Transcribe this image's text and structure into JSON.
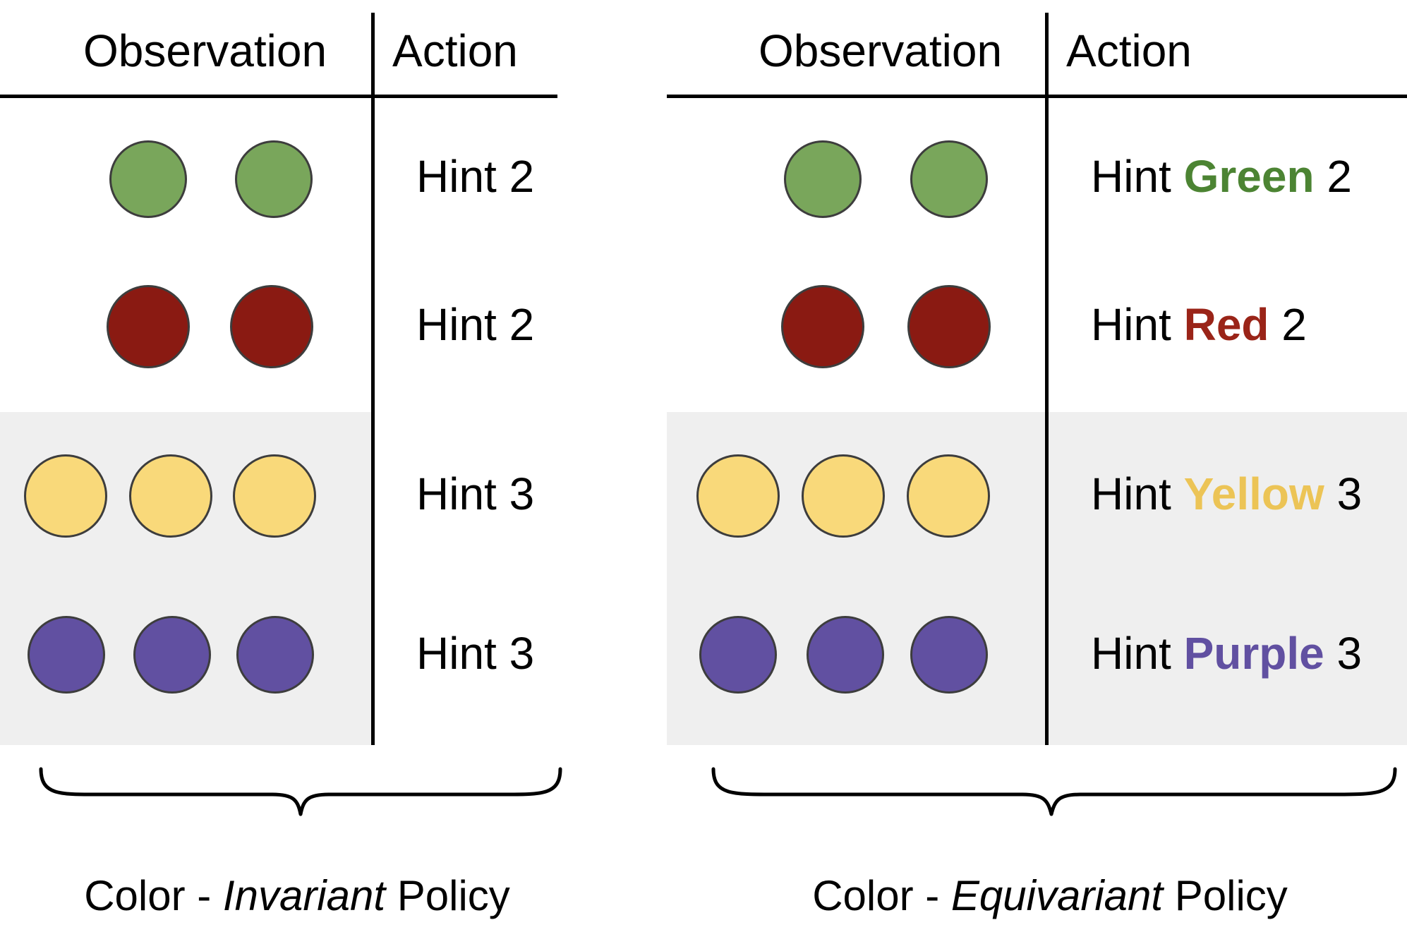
{
  "colors": {
    "green": "#79a65b",
    "red": "#8a1a12",
    "yellow": "#f9d97a",
    "purple": "#6150a1",
    "green_text": "#4c8433",
    "red_text": "#9a2418",
    "yellow_text": "#ecc456",
    "purple_text": "#6150a1",
    "band": "#efefef"
  },
  "headers": {
    "observation": "Observation",
    "action": "Action"
  },
  "invariant": {
    "rows": [
      {
        "circle_color": "green",
        "count": 2,
        "action": "Hint 2"
      },
      {
        "circle_color": "red",
        "count": 2,
        "action": "Hint 2"
      },
      {
        "circle_color": "yellow",
        "count": 3,
        "action": "Hint 3"
      },
      {
        "circle_color": "purple",
        "count": 3,
        "action": "Hint 3"
      }
    ],
    "caption_before": "Color - ",
    "caption_emph": "Invariant",
    "caption_after": " Policy"
  },
  "equivariant": {
    "rows": [
      {
        "circle_color": "green",
        "count": 2,
        "action_prefix": "Hint ",
        "action_color_word": "Green",
        "action_suffix": " 2"
      },
      {
        "circle_color": "red",
        "count": 2,
        "action_prefix": "Hint ",
        "action_color_word": "Red",
        "action_suffix": " 2"
      },
      {
        "circle_color": "yellow",
        "count": 3,
        "action_prefix": "Hint ",
        "action_color_word": "Yellow",
        "action_suffix": " 3"
      },
      {
        "circle_color": "purple",
        "count": 3,
        "action_prefix": "Hint ",
        "action_color_word": "Purple",
        "action_suffix": " 3"
      }
    ],
    "caption_before": "Color - ",
    "caption_emph": "Equivariant",
    "caption_after": " Policy"
  },
  "icons": [
    "circle-icon",
    "curly-brace-icon"
  ]
}
